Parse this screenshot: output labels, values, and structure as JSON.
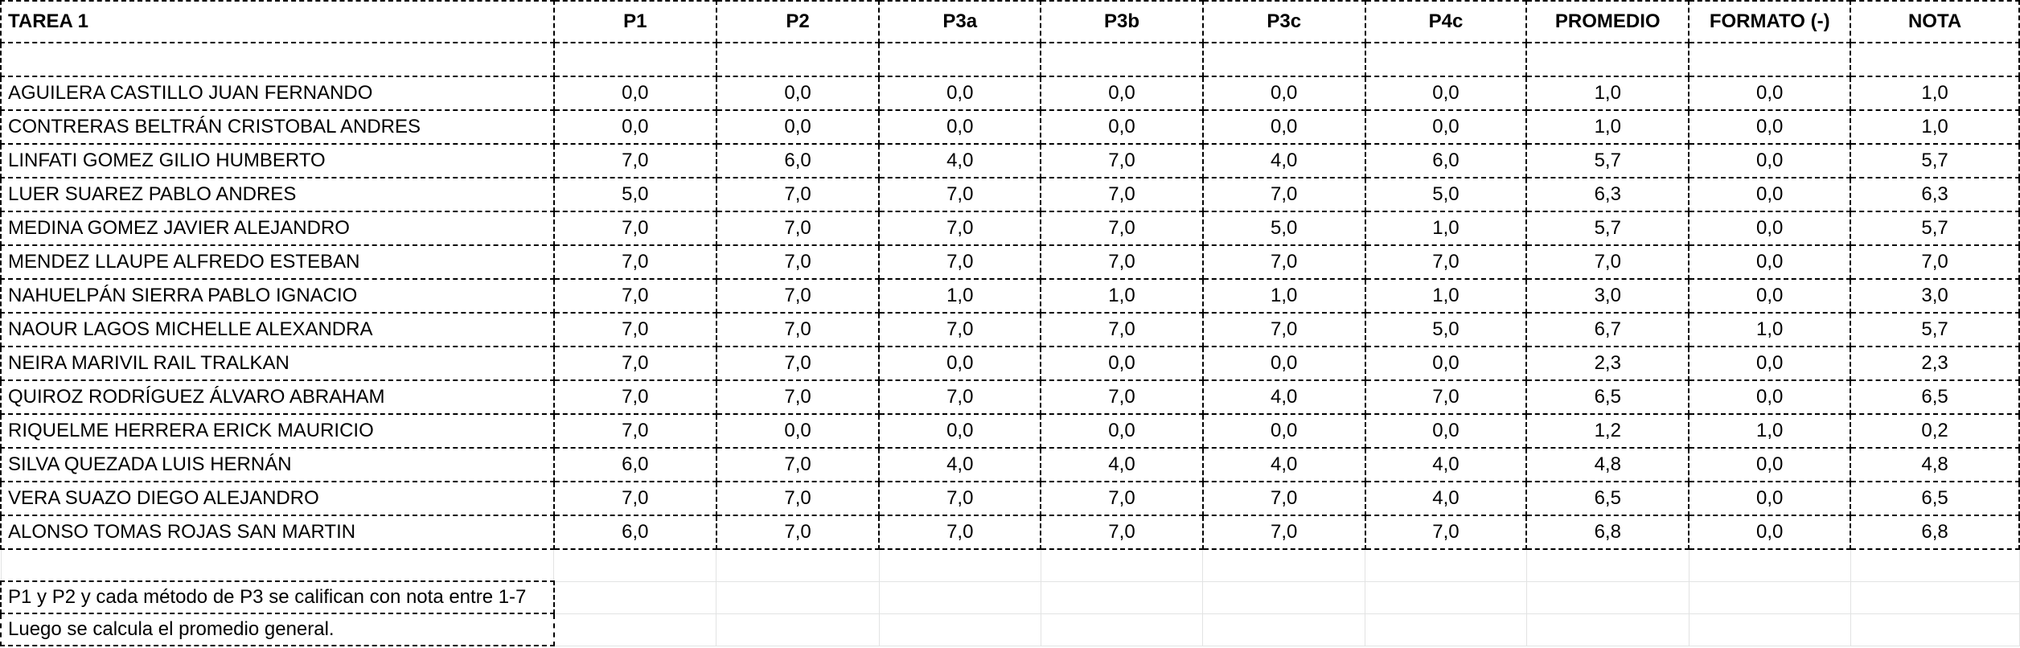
{
  "sheet": {
    "headers": [
      "TAREA 1",
      "P1",
      "P2",
      "P3a",
      "P3b",
      "P3c",
      "P4c",
      "PROMEDIO",
      "FORMATO (-)",
      "NOTA"
    ],
    "rows": [
      [
        "AGUILERA CASTILLO JUAN FERNANDO",
        "0,0",
        "0,0",
        "0,0",
        "0,0",
        "0,0",
        "0,0",
        "1,0",
        "0,0",
        "1,0"
      ],
      [
        "CONTRERAS BELTRÁN CRISTOBAL ANDRES",
        "0,0",
        "0,0",
        "0,0",
        "0,0",
        "0,0",
        "0,0",
        "1,0",
        "0,0",
        "1,0"
      ],
      [
        "LINFATI GOMEZ GILIO HUMBERTO",
        "7,0",
        "6,0",
        "4,0",
        "7,0",
        "4,0",
        "6,0",
        "5,7",
        "0,0",
        "5,7"
      ],
      [
        "LUER SUAREZ PABLO ANDRES",
        "5,0",
        "7,0",
        "7,0",
        "7,0",
        "7,0",
        "5,0",
        "6,3",
        "0,0",
        "6,3"
      ],
      [
        "MEDINA GOMEZ JAVIER ALEJANDRO",
        "7,0",
        "7,0",
        "7,0",
        "7,0",
        "5,0",
        "1,0",
        "5,7",
        "0,0",
        "5,7"
      ],
      [
        "MENDEZ LLAUPE ALFREDO ESTEBAN",
        "7,0",
        "7,0",
        "7,0",
        "7,0",
        "7,0",
        "7,0",
        "7,0",
        "0,0",
        "7,0"
      ],
      [
        "NAHUELPÁN SIERRA PABLO IGNACIO",
        "7,0",
        "7,0",
        "1,0",
        "1,0",
        "1,0",
        "1,0",
        "3,0",
        "0,0",
        "3,0"
      ],
      [
        "NAOUR LAGOS MICHELLE ALEXANDRA",
        "7,0",
        "7,0",
        "7,0",
        "7,0",
        "7,0",
        "5,0",
        "6,7",
        "1,0",
        "5,7"
      ],
      [
        "NEIRA MARIVIL RAIL TRALKAN",
        "7,0",
        "7,0",
        "0,0",
        "0,0",
        "0,0",
        "0,0",
        "2,3",
        "0,0",
        "2,3"
      ],
      [
        "QUIROZ RODRÍGUEZ ÁLVARO ABRAHAM",
        "7,0",
        "7,0",
        "7,0",
        "7,0",
        "4,0",
        "7,0",
        "6,5",
        "0,0",
        "6,5"
      ],
      [
        "RIQUELME HERRERA ERICK MAURICIO",
        "7,0",
        "0,0",
        "0,0",
        "0,0",
        "0,0",
        "0,0",
        "1,2",
        "1,0",
        "0,2"
      ],
      [
        "SILVA QUEZADA LUIS HERNÁN",
        "6,0",
        "7,0",
        "4,0",
        "4,0",
        "4,0",
        "4,0",
        "4,8",
        "0,0",
        "4,8"
      ],
      [
        "VERA SUAZO DIEGO ALEJANDRO",
        "7,0",
        "7,0",
        "7,0",
        "7,0",
        "7,0",
        "4,0",
        "6,5",
        "0,0",
        "6,5"
      ],
      [
        "ALONSO TOMAS ROJAS SAN MARTIN",
        "6,0",
        "7,0",
        "7,0",
        "7,0",
        "7,0",
        "7,0",
        "6,8",
        "0,0",
        "6,8"
      ]
    ],
    "notes": [
      "P1 y P2 y cada método de P3 se califican con nota entre 1-7",
      "Luego se calcula el promedio general."
    ]
  }
}
